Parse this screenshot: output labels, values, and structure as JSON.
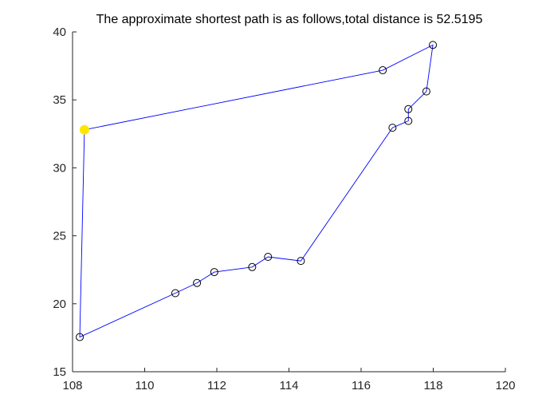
{
  "chart_data": {
    "type": "line",
    "title": "The approximate shortest path is as follows,total distance is 52.5195",
    "xlabel": "",
    "ylabel": "",
    "xlim": [
      108,
      120
    ],
    "ylim": [
      15,
      40
    ],
    "xticks": [
      108,
      110,
      112,
      114,
      116,
      118,
      120
    ],
    "yticks": [
      15,
      20,
      25,
      30,
      35,
      40
    ],
    "grid": false,
    "route_color": "#0000ff",
    "start_marker_color": "#ffe600",
    "route": {
      "x": [
        108.33,
        108.2,
        110.85,
        111.45,
        111.93,
        112.98,
        113.42,
        114.33,
        116.87,
        117.31,
        117.31,
        117.81,
        117.99,
        116.6,
        108.33
      ],
      "y": [
        32.8,
        17.55,
        20.78,
        21.53,
        22.33,
        22.7,
        23.45,
        23.15,
        32.95,
        33.45,
        34.32,
        35.62,
        39.04,
        37.18,
        32.8
      ]
    },
    "cities": {
      "x": [
        108.2,
        110.85,
        111.45,
        111.93,
        112.98,
        113.42,
        114.33,
        116.87,
        117.31,
        117.31,
        117.81,
        117.99,
        116.6
      ],
      "y": [
        17.55,
        20.78,
        21.53,
        22.33,
        22.7,
        23.45,
        23.15,
        32.95,
        33.45,
        34.32,
        35.62,
        39.04,
        37.18
      ]
    },
    "start_city": {
      "x": 108.33,
      "y": 32.8
    }
  }
}
